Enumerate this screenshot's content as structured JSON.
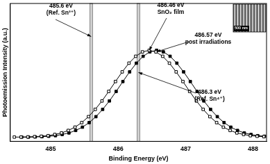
{
  "chart_data": {
    "type": "line",
    "x_label": "Binding Energy (eV)",
    "y_label": "Photoemission Intensity (a.u.)",
    "xlim": [
      484.4,
      488.2
    ],
    "xticks": [
      485,
      486,
      487,
      488
    ],
    "ylim": [
      0,
      1
    ],
    "tick_labels": "x",
    "grid": false,
    "ref_lines": [
      485.6,
      486.3
    ],
    "series": [
      {
        "name": "SnO₂ film",
        "color": "#000000",
        "marker": "square_open",
        "line_style": "solid",
        "x": [
          484.46,
          484.56,
          484.66,
          484.76,
          484.86,
          484.96,
          485.06,
          485.16,
          485.26,
          485.36,
          485.46,
          485.56,
          485.66,
          485.76,
          485.86,
          485.96,
          486.06,
          486.16,
          486.26,
          486.36,
          486.46,
          486.56,
          486.66,
          486.76,
          486.86,
          486.96,
          487.06,
          487.16,
          487.26,
          487.36,
          487.46,
          487.56,
          487.66,
          487.76,
          487.86,
          487.96,
          488.06,
          488.16
        ],
        "values": [
          0.031,
          0.031,
          0.032,
          0.034,
          0.037,
          0.041,
          0.05,
          0.061,
          0.079,
          0.103,
          0.136,
          0.179,
          0.232,
          0.293,
          0.362,
          0.434,
          0.504,
          0.567,
          0.617,
          0.649,
          0.66,
          0.649,
          0.617,
          0.567,
          0.504,
          0.434,
          0.362,
          0.293,
          0.232,
          0.179,
          0.136,
          0.103,
          0.079,
          0.061,
          0.05,
          0.041,
          0.037,
          0.034
        ]
      },
      {
        "name": "post irradiations",
        "color": "#000000",
        "marker": "square",
        "line_style": "solid",
        "x": [
          484.57,
          484.67,
          484.77,
          484.87,
          484.97,
          485.07,
          485.17,
          485.27,
          485.37,
          485.47,
          485.57,
          485.67,
          485.77,
          485.87,
          485.97,
          486.07,
          486.17,
          486.27,
          486.37,
          486.47,
          486.57,
          486.67,
          486.77,
          486.87,
          486.97,
          487.07,
          487.17,
          487.27,
          487.37,
          487.47,
          487.57,
          487.67,
          487.77,
          487.87,
          487.97,
          488.07,
          488.17
        ],
        "values": [
          0.031,
          0.031,
          0.032,
          0.034,
          0.037,
          0.041,
          0.05,
          0.061,
          0.079,
          0.103,
          0.136,
          0.179,
          0.232,
          0.293,
          0.362,
          0.434,
          0.504,
          0.567,
          0.617,
          0.649,
          0.66,
          0.649,
          0.617,
          0.567,
          0.504,
          0.434,
          0.362,
          0.293,
          0.232,
          0.179,
          0.136,
          0.103,
          0.079,
          0.061,
          0.05,
          0.041,
          0.037
        ]
      }
    ],
    "annotations": [
      {
        "text": [
          "485.6 eV",
          "(Ref. Sn²⁺)"
        ],
        "x": 485.6,
        "y": 0.76
      },
      {
        "text": [
          "486.46 eV",
          "SnO₂ film"
        ],
        "x": 486.46,
        "y": 0.66
      },
      {
        "text": [
          "486.57 eV",
          "post irradiations"
        ],
        "x": 486.57,
        "y": 0.65
      },
      {
        "text": [
          "486.3 eV",
          "(Ref. Sn⁴⁺)"
        ],
        "x": 486.3,
        "y": 0.5
      }
    ],
    "inset": {
      "scale_label": "500 nm"
    }
  }
}
